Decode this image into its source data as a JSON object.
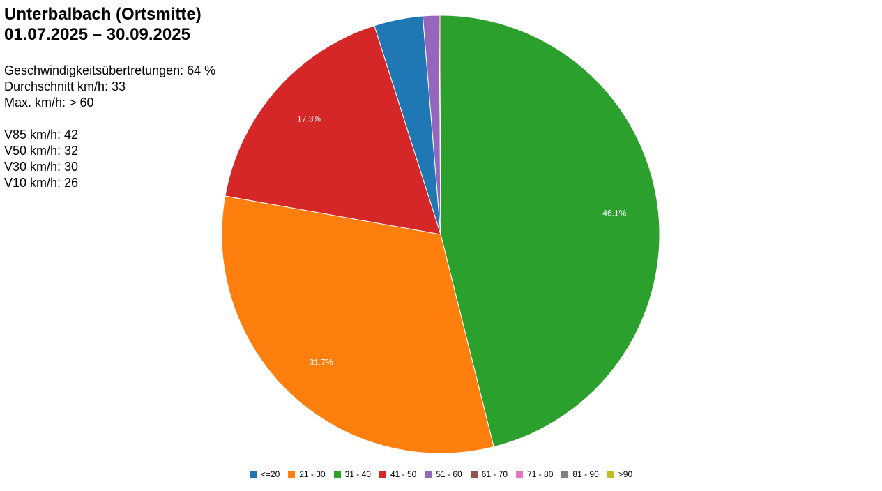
{
  "header": {
    "title": "Unterbalbach (Ortsmitte)",
    "period": "01.07.2025 – 30.09.2025"
  },
  "stats": {
    "violations": "Geschwindigkeitsübertretungen: 64 %",
    "average": "Durchschnitt km/h: 33",
    "max": "Max. km/h: > 60",
    "v85": "V85 km/h: 42",
    "v50": "V50 km/h: 32",
    "v30": "V30 km/h: 30",
    "v10": "V10 km/h: 26"
  },
  "chart_data": {
    "type": "pie",
    "categories": [
      "<=20",
      "21 - 30",
      "31 - 40",
      "41 - 50",
      "51 - 60",
      "61 - 70",
      "71 - 80",
      "81 - 90",
      ">90"
    ],
    "values": [
      3.6,
      31.7,
      46.1,
      17.3,
      1.2,
      0.1,
      0.0,
      0.0,
      0.0
    ],
    "labels": [
      "",
      "31.7%",
      "46.1%",
      "17.3%",
      "",
      "",
      "",
      "",
      ""
    ],
    "colors": [
      "#1f77b4",
      "#ff7f0e",
      "#2ca02c",
      "#d62728",
      "#9467bd",
      "#8c564b",
      "#e377c2",
      "#7f7f7f",
      "#bcbd22"
    ],
    "order": [
      2,
      1,
      3,
      0,
      4,
      5,
      6,
      7,
      8
    ],
    "legend_position": "bottom",
    "start_angle": "top",
    "direction": "clockwise"
  }
}
